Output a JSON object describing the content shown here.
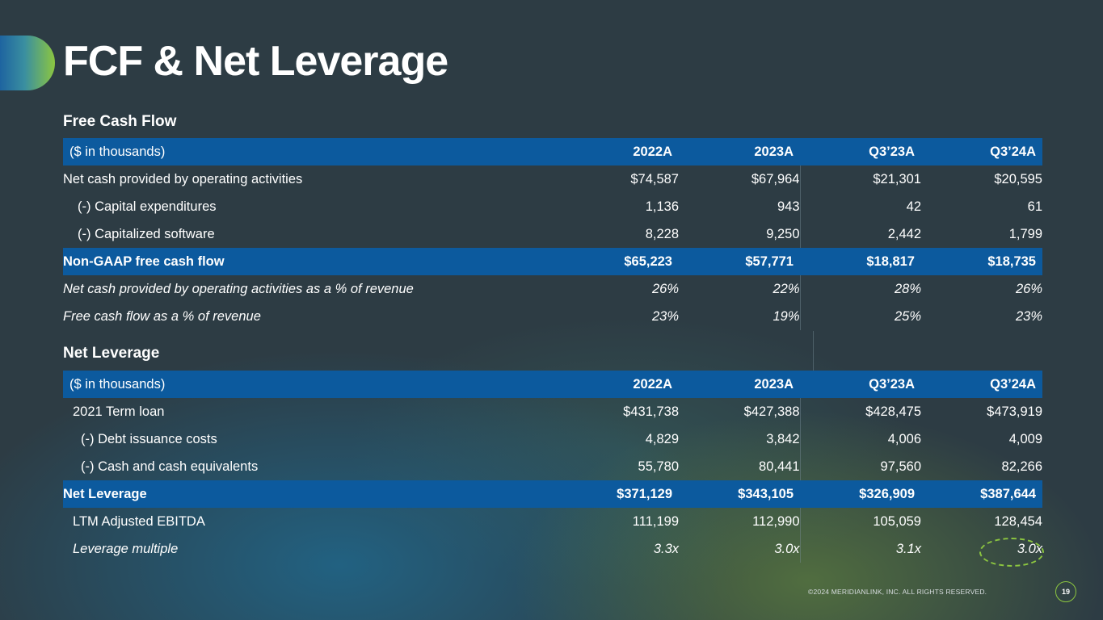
{
  "title": "FCF & Net Leverage",
  "fcf": {
    "section_title": "Free Cash Flow",
    "header": {
      "label": "($ in thousands)",
      "cols": [
        "2022A",
        "2023A",
        "Q3’23A",
        "Q3’24A"
      ]
    },
    "rows": [
      {
        "label": "Net cash provided by operating activities",
        "values": [
          "$74,587",
          "$67,964",
          "$21,301",
          "$20,595"
        ]
      },
      {
        "label": "(-) Capital expenditures",
        "values": [
          "1,136",
          "943",
          "42",
          "61"
        ]
      },
      {
        "label": "(-) Capitalized software",
        "values": [
          "8,228",
          "9,250",
          "2,442",
          "1,799"
        ]
      },
      {
        "label": "Non-GAAP free cash flow",
        "values": [
          "$65,223",
          "$57,771",
          "$18,817",
          "$18,735"
        ]
      },
      {
        "label": "Net cash provided by operating activities as a % of revenue",
        "values": [
          "26%",
          "22%",
          "28%",
          "26%"
        ]
      },
      {
        "label": "Free cash flow as a % of revenue",
        "values": [
          "23%",
          "19%",
          "25%",
          "23%"
        ]
      }
    ]
  },
  "leverage": {
    "section_title": "Net Leverage",
    "header": {
      "label": "($ in thousands)",
      "cols": [
        "2022A",
        "2023A",
        "Q3’23A",
        "Q3’24A"
      ]
    },
    "rows": [
      {
        "label": "2021 Term loan",
        "values": [
          "$431,738",
          "$427,388",
          "$428,475",
          "$473,919"
        ]
      },
      {
        "label": "(-) Debt issuance costs",
        "values": [
          "4,829",
          "3,842",
          "4,006",
          "4,009"
        ]
      },
      {
        "label": "(-) Cash and cash equivalents",
        "values": [
          "55,780",
          "80,441",
          "97,560",
          "82,266"
        ]
      },
      {
        "label": "Net Leverage",
        "values": [
          "$371,129",
          "$343,105",
          "$326,909",
          "$387,644"
        ]
      },
      {
        "label": "LTM Adjusted EBITDA",
        "values": [
          "111,199",
          "112,990",
          "105,059",
          "128,454"
        ]
      },
      {
        "label": "Leverage multiple",
        "values": [
          "3.3x",
          "3.0x",
          "3.1x",
          "3.0x"
        ]
      }
    ]
  },
  "footer": {
    "copyright": "©2024 MERIDIANLINK, INC. ALL RIGHTS RESERVED.",
    "page_number": "19"
  },
  "colors": {
    "background": "#2d3c44",
    "header_band": "#0c5a9e",
    "accent_green": "#8cc640",
    "accent_blue": "#1e64a0"
  }
}
